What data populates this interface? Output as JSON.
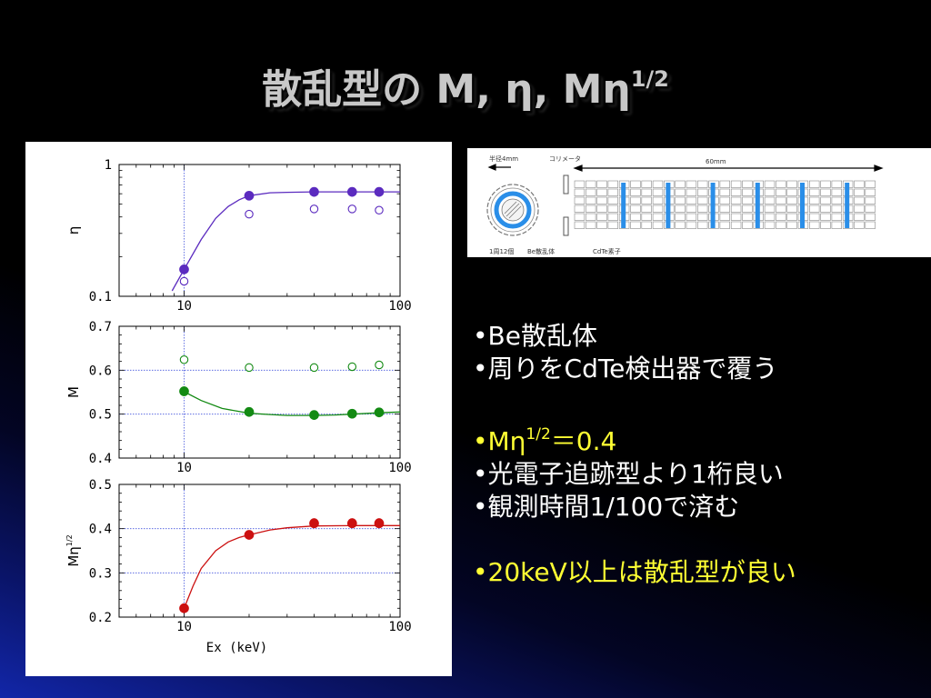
{
  "slide": {
    "title_main": "散乱型の M, η, Mη",
    "title_sup": "1/2"
  },
  "bullets": {
    "b1": "•Be散乱体",
    "b2": "•周りをCdTe検出器で覆う",
    "b3_main": "•Mη",
    "b3_sup": "1/2",
    "b3_rest": "＝0.4",
    "b4": "•光電子追跡型より1桁良い",
    "b5": "•観測時間1/100で済む",
    "b6": "•20keV以上は散乱型が良い"
  },
  "diagram": {
    "label_radius": "半径4mm",
    "label_collimator": "コリメータ",
    "label_length": "60mm",
    "label_count": "1周12個",
    "label_scatterer": "Be散乱体",
    "label_cdte": "CdTe素子",
    "colors": {
      "scatterer": "#2a8ee8",
      "strip": "#2a8ee8",
      "grid": "#888888"
    }
  },
  "chart_data": [
    {
      "type": "scatter",
      "panel": "top",
      "ylabel": "η",
      "xlabel": "",
      "x_scale": "log",
      "y_scale": "log",
      "xlim": [
        5,
        100
      ],
      "ylim": [
        0.1,
        1
      ],
      "x_ticks": [
        "10",
        "100"
      ],
      "y_ticks": [
        "1",
        "0.1"
      ],
      "color": "#5b2bbf",
      "series": [
        {
          "filled": true,
          "x": [
            10,
            20,
            40,
            60,
            80
          ],
          "y": [
            0.16,
            0.58,
            0.62,
            0.62,
            0.62
          ]
        },
        {
          "filled": false,
          "x": [
            10,
            20,
            40,
            60,
            80
          ],
          "y": [
            0.13,
            0.42,
            0.46,
            0.46,
            0.45
          ]
        }
      ],
      "fit": {
        "x": [
          8.8,
          10,
          12,
          14,
          16,
          18,
          20,
          25,
          30,
          40,
          60,
          80,
          100
        ],
        "y": [
          0.11,
          0.16,
          0.27,
          0.39,
          0.48,
          0.54,
          0.58,
          0.61,
          0.615,
          0.62,
          0.62,
          0.62,
          0.62
        ]
      }
    },
    {
      "type": "scatter",
      "panel": "middle",
      "ylabel": "M",
      "xlabel": "",
      "x_scale": "log",
      "xlim": [
        5,
        100
      ],
      "ylim": [
        0.4,
        0.7
      ],
      "x_ticks": [
        "10",
        "100"
      ],
      "y_ticks": [
        "0.7",
        "0.6",
        "0.5",
        "0.4"
      ],
      "color": "#138a13",
      "series": [
        {
          "filled": true,
          "x": [
            10,
            20,
            40,
            60,
            80
          ],
          "y": [
            0.552,
            0.505,
            0.498,
            0.501,
            0.504
          ]
        },
        {
          "filled": false,
          "x": [
            10,
            20,
            40,
            60,
            80
          ],
          "y": [
            0.624,
            0.606,
            0.606,
            0.608,
            0.612
          ]
        }
      ],
      "fit": {
        "x": [
          10,
          12,
          15,
          20,
          25,
          30,
          40,
          50,
          60,
          80,
          100
        ],
        "y": [
          0.551,
          0.531,
          0.513,
          0.502,
          0.499,
          0.497,
          0.497,
          0.498,
          0.5,
          0.503,
          0.505
        ]
      }
    },
    {
      "type": "scatter",
      "panel": "bottom",
      "ylabel": "Mη",
      "ylabel_sup": "1/2",
      "xlabel": "Ex (keV)",
      "x_scale": "log",
      "xlim": [
        5,
        100
      ],
      "ylim": [
        0.2,
        0.5
      ],
      "x_ticks": [
        "10",
        "100"
      ],
      "y_ticks": [
        "0.5",
        "0.4",
        "0.3",
        "0.2"
      ],
      "color": "#cc1111",
      "series": [
        {
          "filled": true,
          "x": [
            10,
            20,
            40,
            60,
            80
          ],
          "y": [
            0.22,
            0.386,
            0.412,
            0.412,
            0.412
          ]
        },
        {
          "filled": false,
          "x": [
            10,
            20,
            40,
            60,
            80
          ],
          "y": [
            0.22,
            0.386,
            0.414,
            0.414,
            0.414
          ]
        }
      ],
      "fit": {
        "x": [
          10,
          11,
          12,
          14,
          16,
          18,
          20,
          25,
          30,
          40,
          60,
          80,
          100
        ],
        "y": [
          0.22,
          0.27,
          0.31,
          0.35,
          0.37,
          0.38,
          0.386,
          0.397,
          0.402,
          0.406,
          0.407,
          0.407,
          0.407
        ]
      }
    }
  ]
}
